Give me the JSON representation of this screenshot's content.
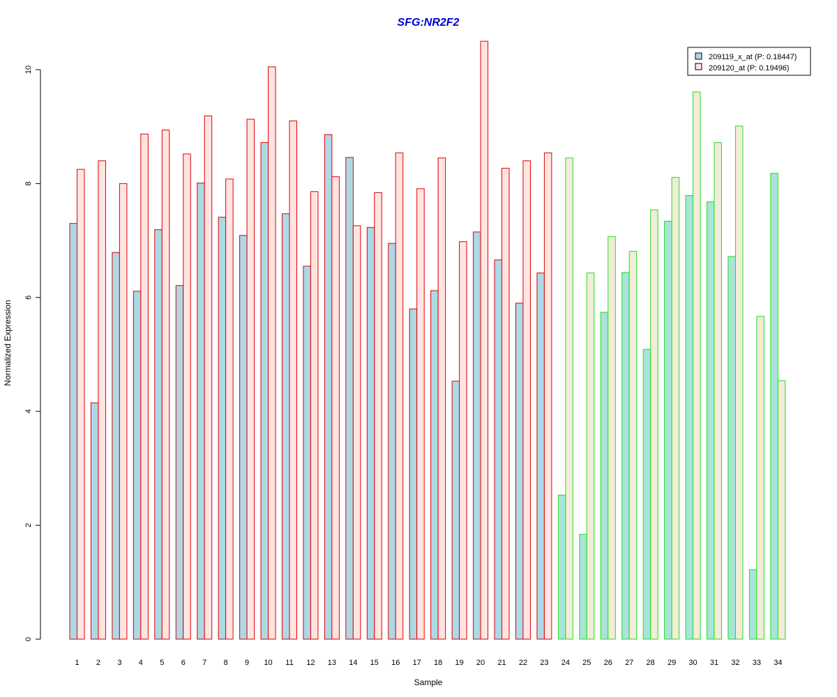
{
  "chart_data": {
    "type": "bar",
    "title": "SFG:NR2F2",
    "xlabel": "Sample",
    "ylabel": "Normalized Expression",
    "ylim": [
      0,
      10.5
    ],
    "yticks": [
      0,
      2,
      4,
      6,
      8,
      10
    ],
    "grid": false,
    "legend_position": "top-right",
    "categories": [
      "1",
      "2",
      "3",
      "4",
      "5",
      "6",
      "7",
      "8",
      "9",
      "10",
      "11",
      "12",
      "13",
      "14",
      "15",
      "16",
      "17",
      "18",
      "19",
      "20",
      "21",
      "22",
      "23",
      "24",
      "25",
      "26",
      "27",
      "28",
      "29",
      "30",
      "31",
      "32",
      "33",
      "34"
    ],
    "series": [
      {
        "name": "209119_x_at (P: 0.18447)",
        "values": [
          7.3,
          4.15,
          6.79,
          6.11,
          7.19,
          6.21,
          8.01,
          7.41,
          7.09,
          8.72,
          7.47,
          6.55,
          8.86,
          8.46,
          7.23,
          6.95,
          5.8,
          6.12,
          4.53,
          7.15,
          6.66,
          5.9,
          6.43,
          2.53,
          1.84,
          5.74,
          6.44,
          5.09,
          7.34,
          7.79,
          7.68,
          6.72,
          1.22,
          8.18
        ]
      },
      {
        "name": "209120_at (P: 0.19496)",
        "values": [
          8.25,
          8.4,
          8.0,
          8.87,
          8.94,
          8.52,
          9.19,
          8.08,
          9.13,
          10.05,
          9.1,
          7.86,
          8.12,
          7.26,
          7.84,
          8.54,
          7.91,
          8.45,
          6.98,
          10.5,
          8.27,
          8.4,
          8.54,
          8.45,
          6.43,
          7.07,
          6.81,
          7.54,
          8.11,
          9.61,
          8.72,
          9.01,
          5.67,
          4.54
        ]
      }
    ],
    "group_colors": {
      "group1": {
        "samples": [
          1,
          23
        ],
        "fill": [
          "#add8e6",
          "#ffe4e1"
        ],
        "stroke": "#dd0000"
      },
      "group2": {
        "samples": [
          24,
          34
        ],
        "fill": [
          "#a8e4d8",
          "#f2ecd8"
        ],
        "stroke": "#22dd22"
      }
    },
    "title_color": "#0000cc"
  }
}
